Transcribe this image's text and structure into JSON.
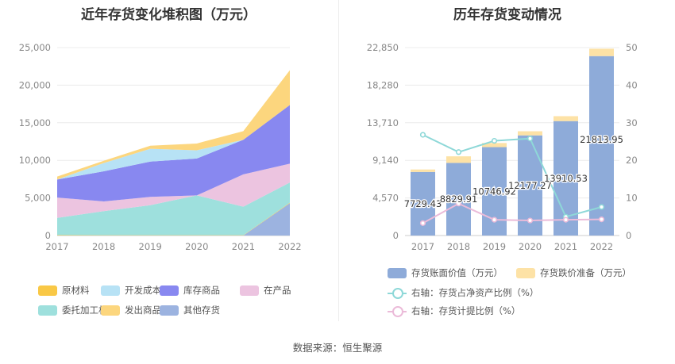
{
  "source_label": "数据来源：恒生聚源",
  "chart_data": [
    {
      "type": "area",
      "title": "近年存货变化堆积图（万元）",
      "stacked": true,
      "x": [
        "2017",
        "2018",
        "2019",
        "2020",
        "2021",
        "2022"
      ],
      "ylim": [
        0,
        25000
      ],
      "yticks": [
        "0",
        "5,000",
        "10,000",
        "15,000",
        "20,000",
        "25,000"
      ],
      "grid": true,
      "series": [
        {
          "name": "其他存货",
          "color": "#9cb3e0",
          "values": [
            0,
            0,
            0,
            0,
            0,
            4300
          ]
        },
        {
          "name": "原材料",
          "color": "#f9c846",
          "values": [
            50,
            40,
            40,
            40,
            40,
            60
          ]
        },
        {
          "name": "委托加工材料",
          "color": "#9ee0dd",
          "values": [
            2300,
            3200,
            4000,
            5300,
            3800,
            2700
          ]
        },
        {
          "name": "在产品",
          "color": "#ecc4e0",
          "values": [
            2700,
            1300,
            1100,
            0,
            4300,
            2500
          ]
        },
        {
          "name": "库存商品",
          "color": "#8888f0",
          "values": [
            2400,
            4000,
            4700,
            4900,
            4600,
            7800
          ]
        },
        {
          "name": "开发成本",
          "color": "#b7e2f5",
          "values": [
            0,
            1100,
            1700,
            1100,
            0,
            0
          ]
        },
        {
          "name": "发出商品",
          "color": "#fcd67e",
          "values": [
            400,
            300,
            400,
            900,
            1150,
            4640
          ]
        }
      ],
      "legend": [
        {
          "name": "原材料",
          "color": "#f9c846"
        },
        {
          "name": "开发成本",
          "color": "#b7e2f5"
        },
        {
          "name": "库存商品",
          "color": "#8888f0"
        },
        {
          "name": "在产品",
          "color": "#ecc4e0"
        },
        {
          "name": "委托加工材料",
          "color": "#9ee0dd"
        },
        {
          "name": "发出商品",
          "color": "#fcd67e"
        },
        {
          "name": "其他存货",
          "color": "#9cb3e0"
        }
      ]
    },
    {
      "type": "bar",
      "title": "历年存货变动情况",
      "stacked": true,
      "x": [
        "2017",
        "2018",
        "2019",
        "2020",
        "2021",
        "2022"
      ],
      "ylim": [
        0,
        22850
      ],
      "yticks": [
        "0",
        "4,570",
        "9,140",
        "13,710",
        "18,280",
        "22,850"
      ],
      "y2lim": [
        0,
        50
      ],
      "y2ticks": [
        "0",
        "10",
        "20",
        "30",
        "40",
        "50"
      ],
      "bar_series": [
        {
          "name": "存货账面价值（万元）",
          "color": "#8eabd9",
          "values": [
            7729.43,
            8829.91,
            10746.92,
            12177.27,
            13910.53,
            21813.95
          ],
          "labels": [
            "7729.43",
            "8829.91",
            "10746.92",
            "12177.27",
            "13910.53",
            "21813.95"
          ]
        },
        {
          "name": "存货跌价准备（万元）",
          "color": "#fde2a6",
          "values": [
            300,
            800,
            500,
            500,
            600,
            900
          ]
        }
      ],
      "line_series": [
        {
          "name": "右轴：存货占净资产比例（%）",
          "color": "#8ed8d8",
          "values": [
            26.8,
            22.2,
            25.2,
            25.8,
            5.0,
            7.6
          ]
        },
        {
          "name": "右轴：存货计提比例（%）",
          "color": "#ebbbd9",
          "values": [
            3.3,
            8.5,
            4.2,
            4.0,
            4.2,
            4.3
          ]
        }
      ]
    }
  ]
}
